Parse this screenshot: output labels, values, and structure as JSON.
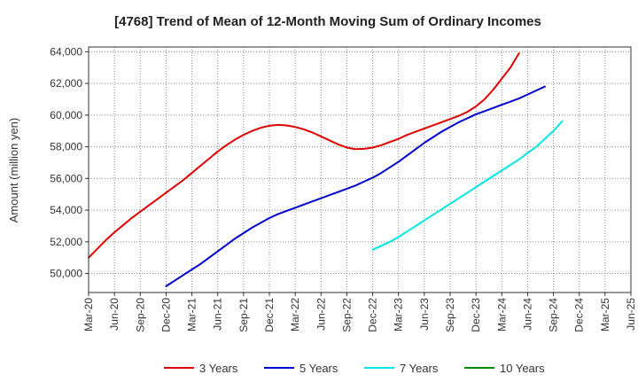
{
  "chart_data": {
    "type": "line",
    "title": "[4768]  Trend of Mean of 12-Month Moving Sum of Ordinary Incomes",
    "xlabel": "",
    "ylabel": "Amount (million yen)",
    "ylim": [
      48800,
      64300
    ],
    "yticks": [
      50000,
      52000,
      54000,
      56000,
      58000,
      60000,
      62000,
      64000
    ],
    "ytick_labels": [
      "50,000",
      "52,000",
      "54,000",
      "56,000",
      "58,000",
      "60,000",
      "62,000",
      "64,000"
    ],
    "x_tick_labels": [
      "Mar-20",
      "Jun-20",
      "Sep-20",
      "Dec-20",
      "Mar-21",
      "Jun-21",
      "Sep-21",
      "Dec-21",
      "Mar-22",
      "Jun-22",
      "Sep-22",
      "Dec-22",
      "Mar-23",
      "Jun-23",
      "Sep-23",
      "Dec-23",
      "Mar-24",
      "Jun-24",
      "Sep-24",
      "Dec-24",
      "Mar-25",
      "Jun-25"
    ],
    "grid": true,
    "legend_position": "bottom",
    "series": [
      {
        "name": "3 Years",
        "color": "#dd0000",
        "start_index": 0,
        "values": [
          51000,
          51550,
          52100,
          52600,
          53050,
          53500,
          53900,
          54300,
          54700,
          55100,
          55500,
          55900,
          56350,
          56800,
          57250,
          57700,
          58100,
          58450,
          58750,
          59000,
          59200,
          59330,
          59380,
          59350,
          59250,
          59100,
          58900,
          58650,
          58400,
          58150,
          57950,
          57850,
          57870,
          57950,
          58100,
          58300,
          58500,
          58750,
          58950,
          59150,
          59350,
          59550,
          59750,
          59950,
          60200,
          60550,
          61000,
          61600,
          62300,
          63000,
          63900
        ]
      },
      {
        "name": "5 Years",
        "color": "#0000cc",
        "start_index": 9,
        "values": [
          49200,
          49550,
          49900,
          50250,
          50600,
          51000,
          51400,
          51800,
          52200,
          52550,
          52900,
          53200,
          53500,
          53750,
          53950,
          54150,
          54350,
          54550,
          54750,
          54950,
          55150,
          55350,
          55550,
          55800,
          56050,
          56350,
          56700,
          57050,
          57450,
          57850,
          58250,
          58600,
          58950,
          59250,
          59550,
          59800,
          60050,
          60250,
          60450,
          60650,
          60850,
          61050,
          61300,
          61550,
          61800
        ]
      },
      {
        "name": "7 Years",
        "color": "#00e5e5",
        "start_index": 33,
        "values": [
          51500,
          51750,
          52000,
          52300,
          52650,
          53000,
          53350,
          53700,
          54050,
          54400,
          54750,
          55100,
          55450,
          55800,
          56150,
          56500,
          56850,
          57200,
          57600,
          58000,
          58500,
          59000,
          59600
        ]
      },
      {
        "name": "10 Years",
        "color": "#008800",
        "start_index": 0,
        "values": []
      }
    ]
  }
}
